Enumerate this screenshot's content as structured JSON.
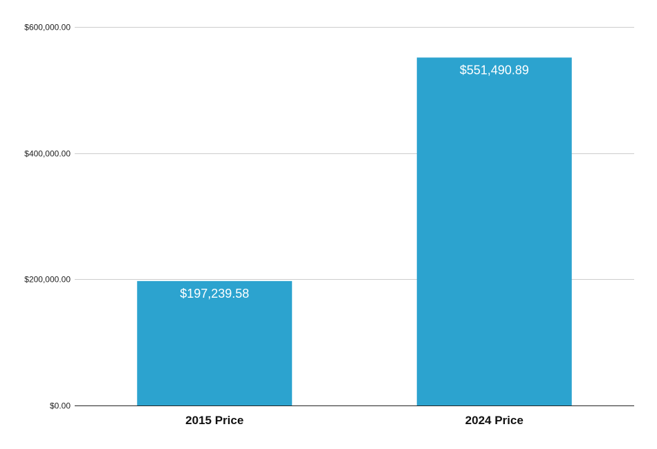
{
  "chart_data": {
    "type": "bar",
    "title": "",
    "xlabel": "",
    "ylabel": "",
    "categories": [
      "2015 Price",
      "2024 Price"
    ],
    "values": [
      197239.58,
      551490.89
    ],
    "value_labels": [
      "$197,239.58",
      "$551,490.89"
    ],
    "ylim": [
      0,
      600000
    ],
    "y_ticks": [
      0,
      200000,
      400000,
      600000
    ],
    "y_tick_labels": [
      "$0.00",
      "$200,000.00",
      "$400,000.00",
      "$600,000.00"
    ],
    "grid": true,
    "legend": "none",
    "bar_color": "#2CA3CF",
    "gridline_color": "#CCCCCC",
    "axis_color": "#222222"
  }
}
